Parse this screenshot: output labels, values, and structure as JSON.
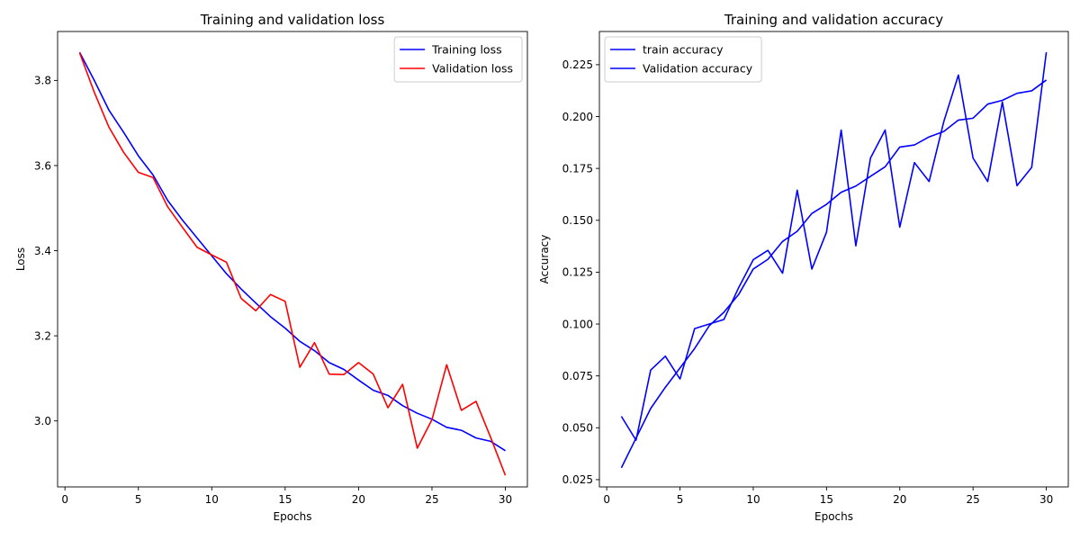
{
  "chart_data": [
    {
      "type": "line",
      "title": "Training and validation loss",
      "xlabel": "Epochs",
      "ylabel": "Loss",
      "xlim": [
        -0.5,
        31.5
      ],
      "ylim": [
        2.845,
        3.915
      ],
      "x_ticks": [
        0,
        5,
        10,
        15,
        20,
        25,
        30
      ],
      "x_tick_labels": [
        "0",
        "5",
        "10",
        "15",
        "20",
        "25",
        "30"
      ],
      "y_ticks": [
        3.0,
        3.2,
        3.4,
        3.6,
        3.8
      ],
      "y_tick_labels": [
        "3.0",
        "3.2",
        "3.4",
        "3.6",
        "3.8"
      ],
      "grid": false,
      "legend_position": "top-right",
      "x": [
        1,
        2,
        3,
        4,
        5,
        6,
        7,
        8,
        9,
        10,
        11,
        12,
        13,
        14,
        15,
        16,
        17,
        18,
        19,
        20,
        21,
        22,
        23,
        24,
        25,
        26,
        27,
        28,
        29,
        30
      ],
      "series": [
        {
          "name": "Training loss",
          "color": "#0000ff",
          "values": [
            3.866,
            3.8,
            3.73,
            3.678,
            3.623,
            3.578,
            3.518,
            3.472,
            3.43,
            3.388,
            3.346,
            3.31,
            3.277,
            3.245,
            3.218,
            3.187,
            3.165,
            3.137,
            3.121,
            3.096,
            3.072,
            3.06,
            3.036,
            3.018,
            3.004,
            2.985,
            2.978,
            2.96,
            2.952,
            2.93
          ]
        },
        {
          "name": "Validation loss",
          "color": "#ff0000",
          "values": [
            3.865,
            3.772,
            3.69,
            3.631,
            3.584,
            3.572,
            3.503,
            3.455,
            3.408,
            3.39,
            3.373,
            3.288,
            3.259,
            3.297,
            3.281,
            3.126,
            3.184,
            3.11,
            3.109,
            3.137,
            3.11,
            3.031,
            3.086,
            2.936,
            3.003,
            3.132,
            3.025,
            3.046,
            2.961,
            2.872
          ]
        }
      ]
    },
    {
      "type": "line",
      "title": "Training and validation accuracy",
      "xlabel": "Epochs",
      "ylabel": "Accuracy",
      "xlim": [
        -0.5,
        31.5
      ],
      "ylim": [
        0.0215,
        0.241
      ],
      "x_ticks": [
        0,
        5,
        10,
        15,
        20,
        25,
        30
      ],
      "x_tick_labels": [
        "0",
        "5",
        "10",
        "15",
        "20",
        "25",
        "30"
      ],
      "y_ticks": [
        0.025,
        0.05,
        0.075,
        0.1,
        0.125,
        0.15,
        0.175,
        0.2,
        0.225
      ],
      "y_tick_labels": [
        "0.025",
        "0.050",
        "0.075",
        "0.100",
        "0.125",
        "0.150",
        "0.175",
        "0.200",
        "0.225"
      ],
      "grid": false,
      "legend_position": "top-left",
      "x": [
        1,
        2,
        3,
        4,
        5,
        6,
        7,
        8,
        9,
        10,
        11,
        12,
        13,
        14,
        15,
        16,
        17,
        18,
        19,
        20,
        21,
        22,
        23,
        24,
        25,
        26,
        27,
        28,
        29,
        30
      ],
      "series": [
        {
          "name": "train accuracy",
          "color": "#0000ff",
          "values": [
            0.0307,
            0.045,
            0.0593,
            0.0695,
            0.0788,
            0.0882,
            0.0992,
            0.1057,
            0.1142,
            0.1265,
            0.1312,
            0.1398,
            0.1447,
            0.1533,
            0.1577,
            0.1635,
            0.1665,
            0.1712,
            0.1758,
            0.1853,
            0.1863,
            0.1902,
            0.1928,
            0.1983,
            0.1992,
            0.206,
            0.2078,
            0.2112,
            0.2124,
            0.2176
          ]
        },
        {
          "name": "Validation accuracy",
          "color": "#0000ff",
          "values": [
            0.0555,
            0.044,
            0.0778,
            0.0845,
            0.0735,
            0.0978,
            0.1,
            0.1022,
            0.1175,
            0.131,
            0.1355,
            0.1245,
            0.1645,
            0.1265,
            0.1443,
            0.1935,
            0.1377,
            0.18,
            0.1935,
            0.1467,
            0.1778,
            0.1687,
            0.1975,
            0.22,
            0.18,
            0.1687,
            0.207,
            0.1667,
            0.1755,
            0.231
          ]
        }
      ]
    }
  ]
}
